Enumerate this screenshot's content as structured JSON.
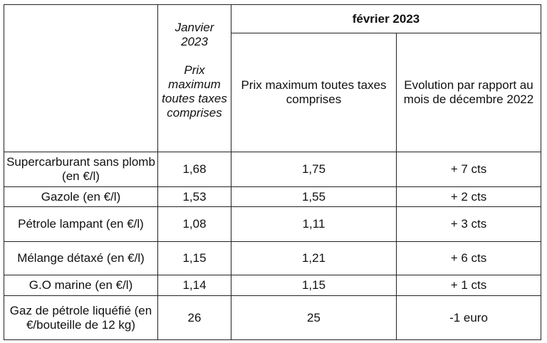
{
  "table": {
    "header": {
      "january_month": "Janvier",
      "january_year": "2023",
      "january_col_label": "Prix maximum toutes taxes comprises",
      "february_label": "février 2023",
      "feb_price_label": "Prix maximum toutes taxes comprises",
      "feb_evolution_label": "Evolution par rapport au mois de décembre 2022"
    },
    "rows": [
      {
        "product": "Supercarburant sans plomb (en €/l)",
        "jan_price": "1,68",
        "feb_price": "1,75",
        "evolution": "+ 7 cts"
      },
      {
        "product": "Gazole (en €/l)",
        "jan_price": "1,53",
        "feb_price": "1,55",
        "evolution": "+ 2 cts"
      },
      {
        "product": "Pétrole lampant (en €/l)",
        "jan_price": "1,08",
        "feb_price": "1,11",
        "evolution": "+ 3 cts"
      },
      {
        "product": "Mélange détaxé (en €/l)",
        "jan_price": "1,15",
        "feb_price": "1,21",
        "evolution": "+ 6 cts"
      },
      {
        "product": "G.O marine (en €/l)",
        "jan_price": "1,14",
        "feb_price": "1,15",
        "evolution": "+ 1 cts"
      },
      {
        "product": "Gaz de pétrole liquéfié (en €/bouteille de 12 kg)",
        "jan_price": "26",
        "feb_price": "25",
        "evolution": "-1 euro"
      }
    ]
  }
}
